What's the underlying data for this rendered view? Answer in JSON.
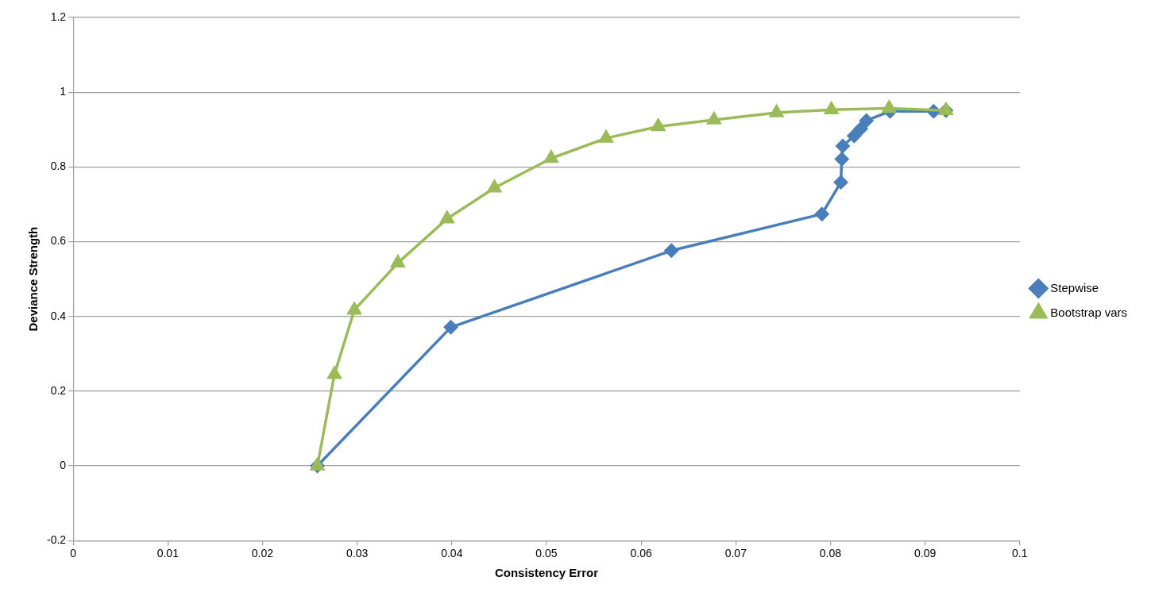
{
  "chart_data": {
    "type": "scatter",
    "xlabel": "Consistency Error",
    "ylabel": "Deviance Strength",
    "xlim": [
      0,
      0.1
    ],
    "xticks": [
      0,
      0.01,
      0.02,
      0.03,
      0.04,
      0.05,
      0.06,
      0.07,
      0.08,
      0.09,
      0.1
    ],
    "ylim": [
      -0.2,
      1.2
    ],
    "yticks": [
      -0.2,
      0,
      0.2,
      0.4,
      0.6,
      0.8,
      1,
      1.2
    ],
    "grid": "y",
    "legend": "right",
    "line_style": "solid",
    "series": [
      {
        "name": "Stepwise",
        "type": "line",
        "marker": "diamond",
        "color": "#4a7ebb",
        "x": [
          0.0258,
          0.0399,
          0.0632,
          0.0791,
          0.0811,
          0.0812,
          0.0813,
          0.0825,
          0.0832,
          0.0838,
          0.0863,
          0.0909,
          0.0922
        ],
        "values": [
          0,
          0.371,
          0.576,
          0.674,
          0.759,
          0.821,
          0.856,
          0.883,
          0.902,
          0.924,
          0.949,
          0.949,
          0.951
        ]
      },
      {
        "name": "Bootstrap vars",
        "type": "line",
        "marker": "triangle",
        "color": "#9bbb59",
        "x": [
          0.0258,
          0.0276,
          0.0297,
          0.0343,
          0.0395,
          0.0445,
          0.0505,
          0.0563,
          0.0618,
          0.0677,
          0.0743,
          0.0801,
          0.0862,
          0.0922
        ],
        "values": [
          0,
          0.245,
          0.417,
          0.543,
          0.661,
          0.744,
          0.823,
          0.877,
          0.908,
          0.926,
          0.945,
          0.953,
          0.957,
          0.951
        ]
      }
    ]
  }
}
